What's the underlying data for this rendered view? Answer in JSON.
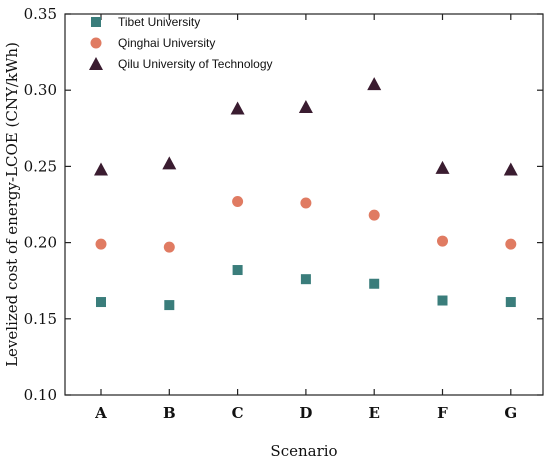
{
  "chart_data": {
    "type": "scatter",
    "title": "",
    "xlabel": "Scenario",
    "ylabel": "Levelized cost of energy-LCOE (CNY/kWh)",
    "categories": [
      "A",
      "B",
      "C",
      "D",
      "E",
      "F",
      "G"
    ],
    "ylim": [
      0.1,
      0.35
    ],
    "yticks": [
      "0.10",
      "0.15",
      "0.20",
      "0.25",
      "0.30",
      "0.35"
    ],
    "grid": false,
    "legend_position": "top-left",
    "series": [
      {
        "name": "Tibet University",
        "marker": "square",
        "color": "#3a7d7b",
        "values": [
          0.161,
          0.159,
          0.182,
          0.176,
          0.173,
          0.162,
          0.161
        ]
      },
      {
        "name": "Qinghai University",
        "marker": "circle",
        "color": "#e07b62",
        "values": [
          0.199,
          0.197,
          0.227,
          0.226,
          0.218,
          0.201,
          0.199
        ]
      },
      {
        "name": "Qilu University of Technology",
        "marker": "triangle",
        "color": "#3a1c30",
        "values": [
          0.248,
          0.252,
          0.288,
          0.289,
          0.304,
          0.249,
          0.248
        ]
      }
    ]
  }
}
